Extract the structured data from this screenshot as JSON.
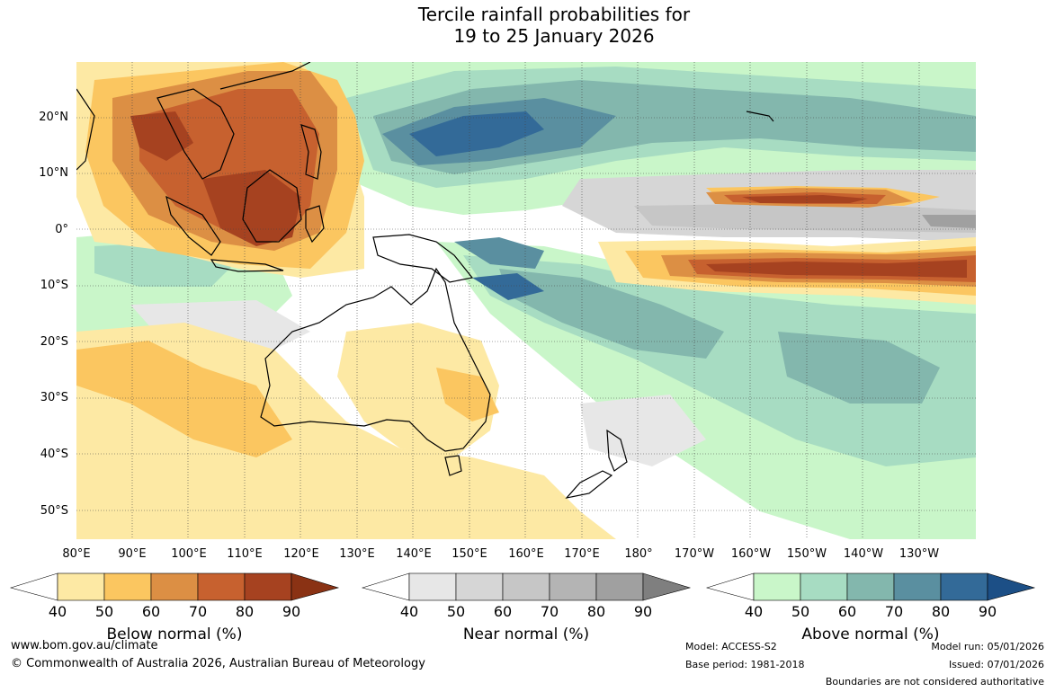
{
  "title_line1": "Tercile rainfall probabilities for",
  "title_line2": "19 to 25 January 2026",
  "lat_labels": [
    "20°N",
    "10°N",
    "0°",
    "10°S",
    "20°S",
    "30°S",
    "40°S",
    "50°S"
  ],
  "lon_labels": [
    "80°E",
    "90°E",
    "100°E",
    "110°E",
    "120°E",
    "130°E",
    "140°E",
    "150°E",
    "160°E",
    "170°E",
    "180°",
    "170°W",
    "160°W",
    "150°W",
    "140°W",
    "130°W"
  ],
  "legends": [
    {
      "name": "Below normal (%)",
      "ticks": [
        "40",
        "50",
        "60",
        "70",
        "80",
        "90"
      ],
      "colors": [
        "#ffffff",
        "#fde9a4",
        "#fbc660",
        "#dc8f44",
        "#c7612f",
        "#a64220",
        "#8a3214"
      ]
    },
    {
      "name": "Near normal (%)",
      "ticks": [
        "40",
        "50",
        "60",
        "70",
        "80",
        "90"
      ],
      "colors": [
        "#ffffff",
        "#e7e7e7",
        "#d6d6d6",
        "#c6c6c6",
        "#b4b4b4",
        "#a0a0a0",
        "#7f7f7f"
      ]
    },
    {
      "name": "Above normal (%)",
      "ticks": [
        "40",
        "50",
        "60",
        "70",
        "80",
        "90"
      ],
      "colors": [
        "#ffffff",
        "#c9f6c9",
        "#a7dcc2",
        "#83b7ad",
        "#5a8fa0",
        "#336a98",
        "#1c4f86"
      ]
    }
  ],
  "footer": {
    "url": "www.bom.gov.au/climate",
    "copyright": "© Commonwealth of Australia 2026, Australian Bureau of Meteorology",
    "model": "Model: ACCESS-S2",
    "base_period": "Base period: 1981-2018",
    "model_run": "Model run: 05/01/2026",
    "issued": "Issued: 07/01/2026",
    "disclaimer": "Boundaries are not considered authoritative"
  },
  "map_colors": {
    "ocean": "#ffffff",
    "coast": "#000000",
    "grid": "#444444"
  }
}
